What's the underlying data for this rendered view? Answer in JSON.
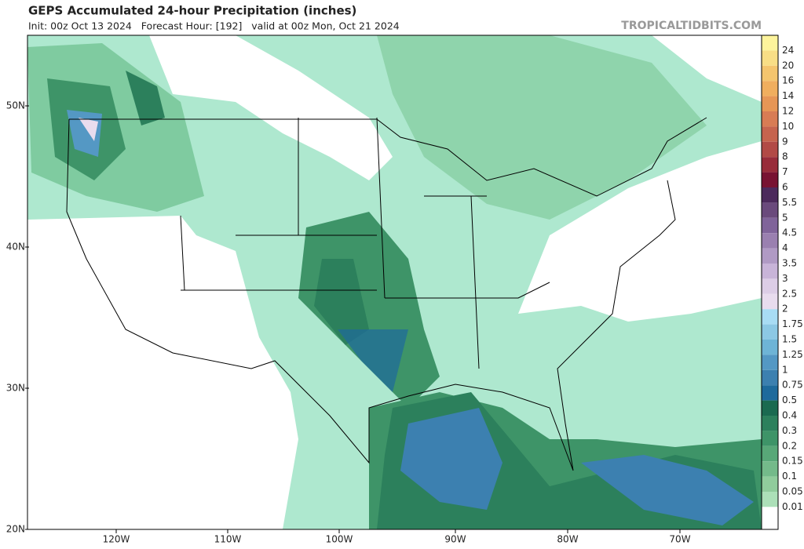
{
  "header": {
    "title": "GEPS Accumulated 24-hour Precipitation (inches)",
    "subtitle": "Init: 00z Oct 13 2024   Forecast Hour: [192]   valid at 00z Mon, Oct 21 2024",
    "site": "TROPICALTIDBITS.COM"
  },
  "map": {
    "lat_labels": [
      "50N",
      "40N",
      "30N",
      "20N"
    ],
    "lon_labels": [
      "120W",
      "110W",
      "100W",
      "90W",
      "80W",
      "70W"
    ]
  },
  "colorbar": [
    {
      "label": "24",
      "color": "#fdf49c"
    },
    {
      "label": "20",
      "color": "#f8de86"
    },
    {
      "label": "16",
      "color": "#f4c56e"
    },
    {
      "label": "14",
      "color": "#f0ae5e"
    },
    {
      "label": "12",
      "color": "#e69656"
    },
    {
      "label": "10",
      "color": "#d87c54"
    },
    {
      "label": "9",
      "color": "#c6644e"
    },
    {
      "label": "8",
      "color": "#b24a46"
    },
    {
      "label": "7",
      "color": "#982c3a"
    },
    {
      "label": "6",
      "color": "#781232"
    },
    {
      "label": "5.5",
      "color": "#4c2a5c"
    },
    {
      "label": "5",
      "color": "#6a4a7c"
    },
    {
      "label": "4.5",
      "color": "#80649a"
    },
    {
      "label": "4",
      "color": "#9a80b0"
    },
    {
      "label": "3.5",
      "color": "#b09ac4"
    },
    {
      "label": "3",
      "color": "#c8b4d8"
    },
    {
      "label": "2.5",
      "color": "#dccde6"
    },
    {
      "label": "2",
      "color": "#e8dcee"
    },
    {
      "label": "1.75",
      "color": "#a8dcf4"
    },
    {
      "label": "1.5",
      "color": "#8cc8e4"
    },
    {
      "label": "1.25",
      "color": "#6eb4d6"
    },
    {
      "label": "1",
      "color": "#5498c4"
    },
    {
      "label": "0.75",
      "color": "#3c80b0"
    },
    {
      "label": "0.5",
      "color": "#1e6a9c"
    },
    {
      "label": "0.4",
      "color": "#1a6a50"
    },
    {
      "label": "0.3",
      "color": "#2c805c"
    },
    {
      "label": "0.2",
      "color": "#3e9468"
    },
    {
      "label": "0.15",
      "color": "#58a878"
    },
    {
      "label": "0.1",
      "color": "#74ba8a"
    },
    {
      "label": "0.05",
      "color": "#90cc9c"
    },
    {
      "label": "0.01",
      "color": "#ace0b8"
    }
  ]
}
